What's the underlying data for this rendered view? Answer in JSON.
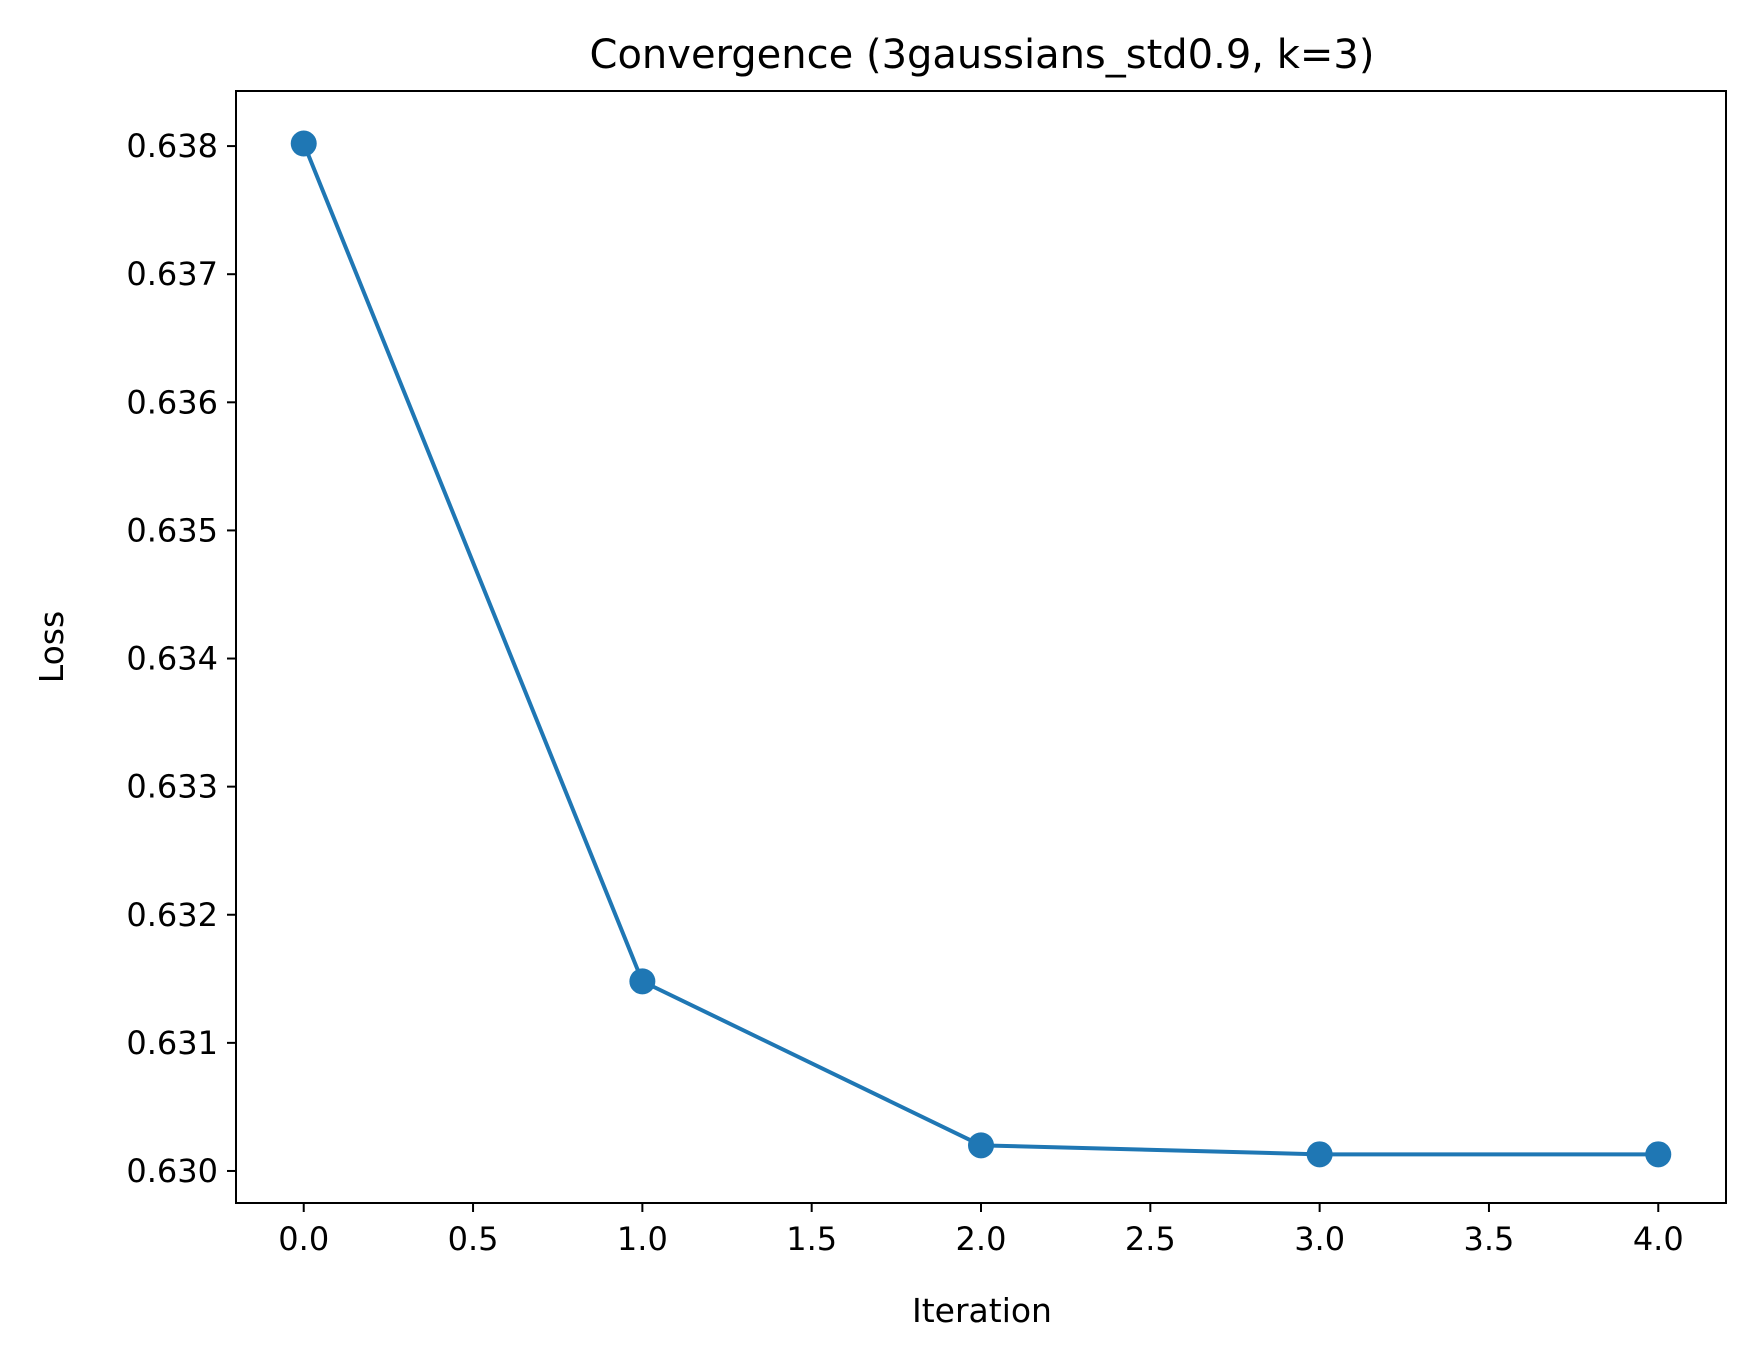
{
  "chart_data": {
    "type": "line",
    "title": "Convergence (3gaussians_std0.9, k=3)",
    "xlabel": "Iteration",
    "ylabel": "Loss",
    "xlim": [
      -0.2,
      4.2
    ],
    "ylim": [
      0.62975,
      0.63843
    ],
    "xticks": [
      0.0,
      0.5,
      1.0,
      1.5,
      2.0,
      2.5,
      3.0,
      3.5,
      4.0
    ],
    "xtick_labels": [
      "0.0",
      "0.5",
      "1.0",
      "1.5",
      "2.0",
      "2.5",
      "3.0",
      "3.5",
      "4.0"
    ],
    "yticks": [
      0.63,
      0.631,
      0.632,
      0.633,
      0.634,
      0.635,
      0.636,
      0.637,
      0.638
    ],
    "ytick_labels": [
      "0.630",
      "0.631",
      "0.632",
      "0.633",
      "0.634",
      "0.635",
      "0.636",
      "0.637",
      "0.638"
    ],
    "grid": false,
    "series": [
      {
        "color": "#1f77b4",
        "marker": "circle",
        "x": [
          0,
          1,
          2,
          3,
          4
        ],
        "values": [
          0.63802,
          0.63148,
          0.6302,
          0.63013,
          0.63013
        ]
      }
    ]
  }
}
